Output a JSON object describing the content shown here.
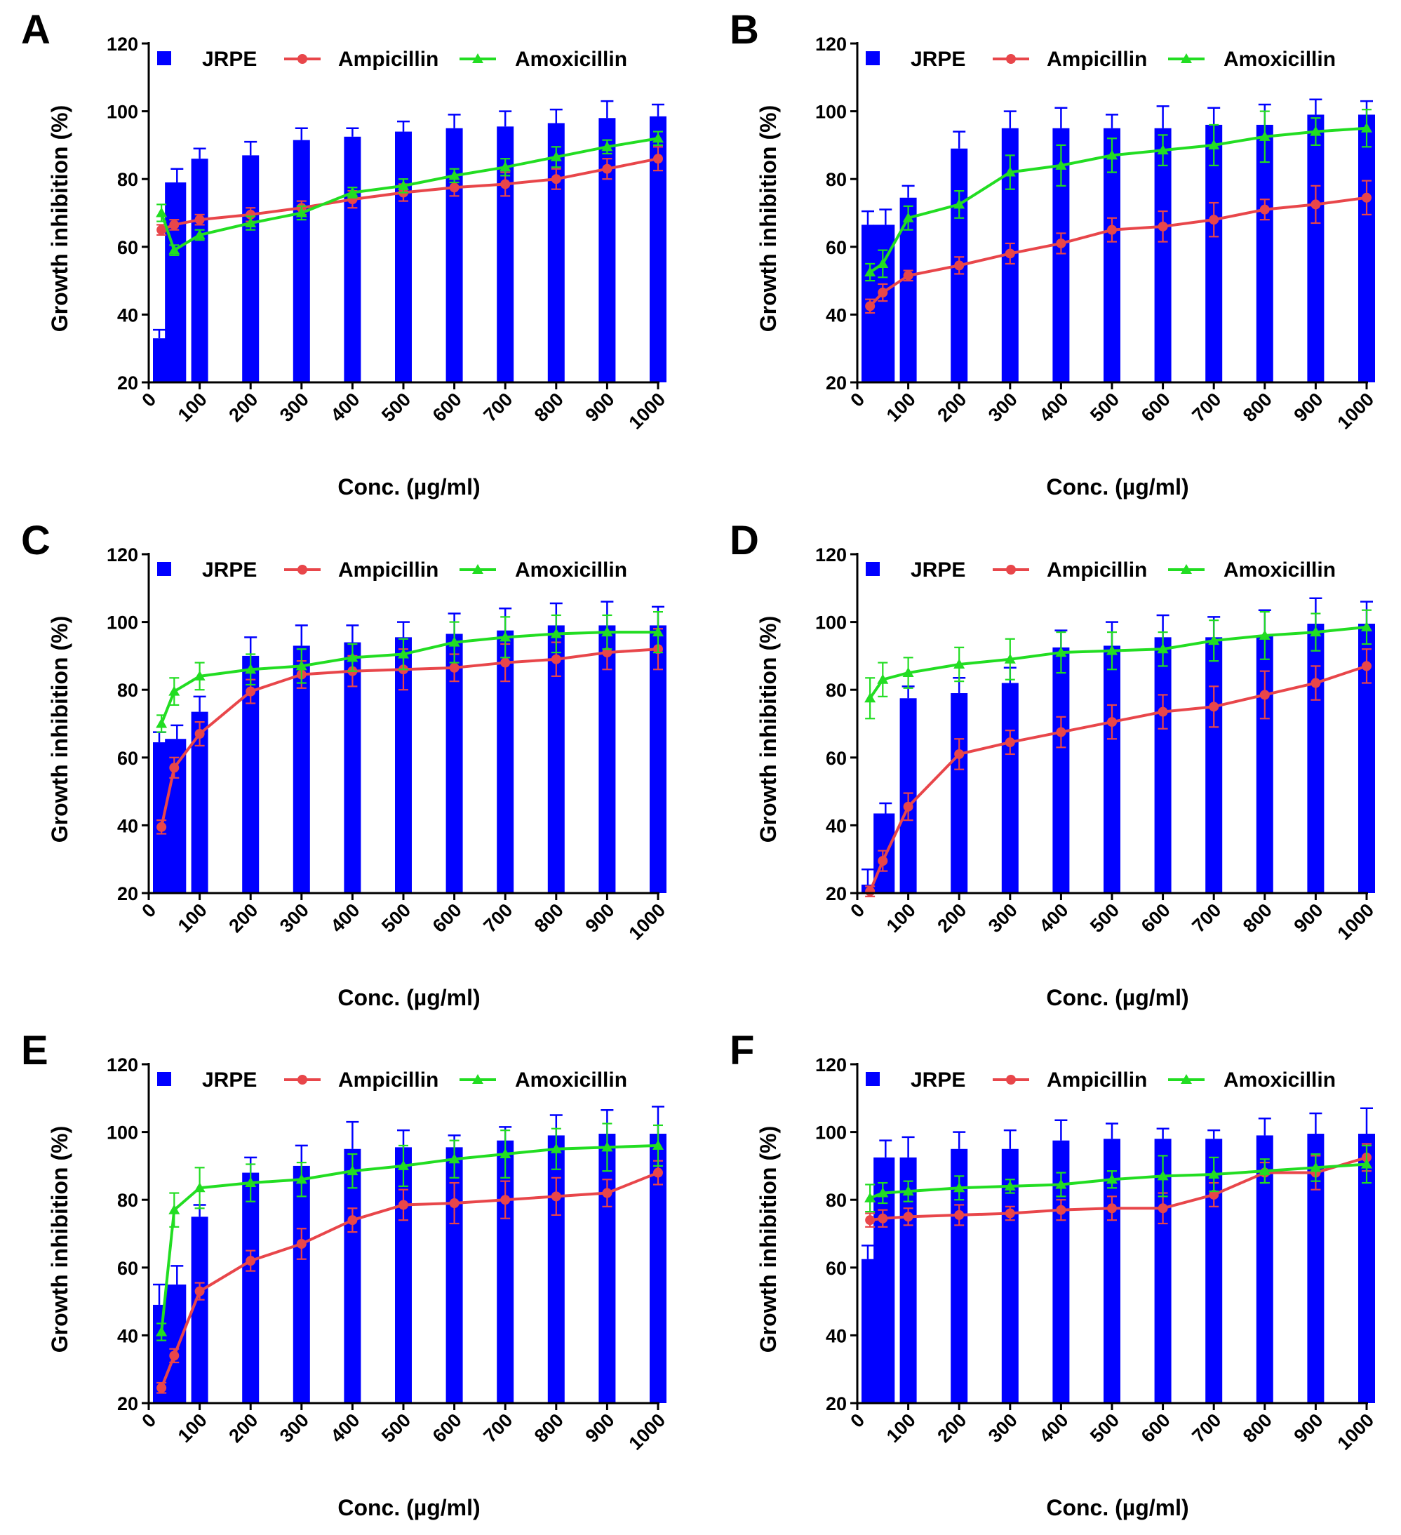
{
  "colors": {
    "jrpe": "#0000FF",
    "ampicillin": "#E8464A",
    "amoxicillin": "#22DD22",
    "axis": "#000000"
  },
  "chart_data": [
    {
      "panel": "A",
      "type": "bar+line",
      "xlabel": "Conc. (µg/ml)",
      "ylabel": "Growth inhibition (%)",
      "ylim": [
        20,
        120
      ],
      "yticks": [
        "20",
        "40",
        "60",
        "80",
        "100",
        "120"
      ],
      "xticks": [
        "0",
        "100",
        "200",
        "300",
        "400",
        "500",
        "600",
        "700",
        "800",
        "900",
        "1000"
      ],
      "x": [
        25,
        50,
        100,
        200,
        300,
        400,
        500,
        600,
        700,
        800,
        900,
        1000
      ],
      "series": [
        {
          "name": "JRPE",
          "kind": "bar",
          "values": [
            33,
            79,
            86,
            87,
            91.5,
            92.5,
            94,
            95,
            95.5,
            96.5,
            98,
            98.5
          ],
          "errors": [
            2.5,
            4,
            3,
            4,
            3.5,
            2.5,
            3,
            4,
            4.5,
            4,
            5,
            3.5
          ]
        },
        {
          "name": "Ampicillin",
          "kind": "line",
          "marker": "circle",
          "values": [
            65,
            66.5,
            68,
            69.5,
            71.5,
            74,
            76,
            77.5,
            78.5,
            80,
            83,
            86
          ],
          "errors": [
            1.5,
            1.5,
            1.5,
            2,
            2,
            2.5,
            2.5,
            2.5,
            3.5,
            3,
            3,
            3.5
          ]
        },
        {
          "name": "Amoxicillin",
          "kind": "line",
          "marker": "triangle",
          "values": [
            70,
            59,
            63.5,
            67,
            70,
            76,
            78,
            81,
            83.5,
            86.5,
            89.5,
            92
          ],
          "errors": [
            2.5,
            1.5,
            1.5,
            2,
            2,
            1.5,
            2,
            2,
            2.5,
            3,
            2,
            2
          ]
        }
      ]
    },
    {
      "panel": "B",
      "type": "bar+line",
      "xlabel": "Conc. (µg/ml)",
      "ylabel": "Growth inhibition (%)",
      "ylim": [
        20,
        120
      ],
      "yticks": [
        "20",
        "40",
        "60",
        "80",
        "100",
        "120"
      ],
      "xticks": [
        "0",
        "100",
        "200",
        "300",
        "400",
        "500",
        "600",
        "700",
        "800",
        "900",
        "1000"
      ],
      "x": [
        25,
        50,
        100,
        200,
        300,
        400,
        500,
        600,
        700,
        800,
        900,
        1000
      ],
      "series": [
        {
          "name": "JRPE",
          "kind": "bar",
          "values": [
            66.5,
            66.5,
            74.5,
            89,
            95,
            95,
            95,
            95,
            96,
            96,
            99,
            99
          ],
          "errors": [
            4,
            4.5,
            3.5,
            5,
            5,
            6,
            4,
            6.5,
            5,
            6,
            4.5,
            4
          ]
        },
        {
          "name": "Ampicillin",
          "kind": "line",
          "marker": "circle",
          "values": [
            42.5,
            46.5,
            51.5,
            54.5,
            58,
            61,
            65,
            66,
            68,
            71,
            72.5,
            74.5
          ],
          "errors": [
            2,
            2.5,
            1.5,
            2.5,
            3,
            3,
            3.5,
            4.5,
            5,
            3,
            5.5,
            5
          ]
        },
        {
          "name": "Amoxicillin",
          "kind": "line",
          "marker": "triangle",
          "values": [
            52.5,
            55,
            68.5,
            72.5,
            82,
            84,
            87,
            88.5,
            90,
            92.5,
            94,
            95
          ],
          "errors": [
            2.5,
            4,
            3.5,
            4,
            5,
            6,
            5,
            4.5,
            6,
            7.5,
            4,
            5.5
          ]
        }
      ]
    },
    {
      "panel": "C",
      "type": "bar+line",
      "xlabel": "Conc. (µg/ml)",
      "ylabel": "Growth inhibition (%)",
      "ylim": [
        20,
        120
      ],
      "yticks": [
        "20",
        "40",
        "60",
        "80",
        "100",
        "120"
      ],
      "xticks": [
        "0",
        "100",
        "200",
        "300",
        "400",
        "500",
        "600",
        "700",
        "800",
        "900",
        "1000"
      ],
      "x": [
        25,
        50,
        100,
        200,
        300,
        400,
        500,
        600,
        700,
        800,
        900,
        1000
      ],
      "series": [
        {
          "name": "JRPE",
          "kind": "bar",
          "values": [
            64.5,
            65.5,
            73.5,
            90,
            93,
            94,
            95.5,
            96.5,
            97.5,
            99,
            99,
            99
          ],
          "errors": [
            3,
            4,
            4.5,
            5.5,
            6,
            5,
            4.5,
            6,
            6.5,
            6.5,
            7,
            5.5
          ]
        },
        {
          "name": "Ampicillin",
          "kind": "line",
          "marker": "circle",
          "values": [
            39.5,
            57,
            67,
            79.5,
            84.5,
            85.5,
            86,
            86.5,
            88,
            89,
            91,
            92
          ],
          "errors": [
            2,
            3,
            3.5,
            3.5,
            4,
            4.5,
            6,
            4,
            5.5,
            5,
            5,
            6
          ]
        },
        {
          "name": "Amoxicillin",
          "kind": "line",
          "marker": "triangle",
          "values": [
            70,
            79.5,
            84,
            86,
            87,
            89.5,
            90.5,
            94,
            95.5,
            96.5,
            97,
            97
          ],
          "errors": [
            2.5,
            4,
            4,
            4.5,
            5,
            4,
            4.5,
            6,
            6,
            5.5,
            5,
            6
          ]
        }
      ]
    },
    {
      "panel": "D",
      "type": "bar+line",
      "xlabel": "Conc. (µg/ml)",
      "ylabel": "Growth inhibition (%)",
      "ylim": [
        20,
        120
      ],
      "yticks": [
        "20",
        "40",
        "60",
        "80",
        "100",
        "120"
      ],
      "xticks": [
        "0",
        "100",
        "200",
        "300",
        "400",
        "500",
        "600",
        "700",
        "800",
        "900",
        "1000"
      ],
      "x": [
        25,
        50,
        100,
        200,
        300,
        400,
        500,
        600,
        700,
        800,
        900,
        1000
      ],
      "series": [
        {
          "name": "JRPE",
          "kind": "bar",
          "values": [
            22.5,
            43.5,
            77.5,
            79,
            82,
            92.5,
            93,
            95.5,
            95.5,
            96,
            99.5,
            99.5
          ],
          "errors": [
            4.5,
            3,
            3.5,
            4.5,
            4.5,
            5,
            7,
            6.5,
            6,
            7.5,
            7.5,
            6.5
          ]
        },
        {
          "name": "Ampicillin",
          "kind": "line",
          "marker": "circle",
          "values": [
            20.5,
            29.5,
            45.5,
            61,
            64.5,
            67.5,
            70.5,
            73.5,
            75,
            78.5,
            82,
            87
          ],
          "errors": [
            1.5,
            3,
            4,
            4.5,
            3.5,
            4.5,
            5,
            5,
            6,
            7,
            5,
            5
          ]
        },
        {
          "name": "Amoxicillin",
          "kind": "line",
          "marker": "triangle",
          "values": [
            77.5,
            83,
            85,
            87.5,
            89,
            91,
            91.5,
            92,
            94.5,
            96,
            97,
            98.5
          ],
          "errors": [
            6,
            5,
            4.5,
            5,
            6,
            6,
            5.5,
            5,
            6,
            7,
            5.5,
            5
          ]
        }
      ]
    },
    {
      "panel": "E",
      "type": "bar+line",
      "xlabel": "Conc. (µg/ml)",
      "ylabel": "Growth inhibition (%)",
      "ylim": [
        20,
        120
      ],
      "yticks": [
        "20",
        "40",
        "60",
        "80",
        "100",
        "120"
      ],
      "xticks": [
        "0",
        "100",
        "200",
        "300",
        "400",
        "500",
        "600",
        "700",
        "800",
        "900",
        "1000"
      ],
      "x": [
        25,
        50,
        100,
        200,
        300,
        400,
        500,
        600,
        700,
        800,
        900,
        1000
      ],
      "series": [
        {
          "name": "JRPE",
          "kind": "bar",
          "values": [
            49,
            55,
            75,
            88,
            90,
            95,
            95.5,
            95.5,
            97.5,
            99,
            99.5,
            99.5
          ],
          "errors": [
            6,
            5.5,
            3.5,
            4.5,
            6,
            8,
            5,
            3.5,
            4,
            6,
            7,
            8
          ]
        },
        {
          "name": "Ampicillin",
          "kind": "line",
          "marker": "circle",
          "values": [
            24.5,
            34,
            53,
            62,
            67,
            74,
            78.5,
            79,
            80,
            81,
            82,
            88
          ],
          "errors": [
            1.5,
            2,
            2.5,
            3,
            4.5,
            3.5,
            4.5,
            6,
            5.5,
            5.5,
            4,
            3.5
          ]
        },
        {
          "name": "Amoxicillin",
          "kind": "line",
          "marker": "triangle",
          "values": [
            41,
            77,
            83.5,
            85,
            86,
            88.5,
            90,
            92,
            93.5,
            95,
            95.5,
            96
          ],
          "errors": [
            2.5,
            5,
            6,
            5.5,
            5,
            5,
            6,
            5.5,
            7,
            6,
            7,
            6
          ]
        }
      ]
    },
    {
      "panel": "F",
      "type": "bar+line",
      "xlabel": "Conc. (µg/ml)",
      "ylabel": "Growth inhibition (%)",
      "ylim": [
        20,
        120
      ],
      "yticks": [
        "20",
        "40",
        "60",
        "80",
        "100",
        "120"
      ],
      "xticks": [
        "0",
        "100",
        "200",
        "300",
        "400",
        "500",
        "600",
        "700",
        "800",
        "900",
        "1000"
      ],
      "x": [
        25,
        50,
        100,
        200,
        300,
        400,
        500,
        600,
        700,
        800,
        900,
        1000
      ],
      "series": [
        {
          "name": "JRPE",
          "kind": "bar",
          "values": [
            62.5,
            92.5,
            92.5,
            95,
            95,
            97.5,
            98,
            98,
            98,
            99,
            99.5,
            99.5
          ],
          "errors": [
            4,
            5,
            6,
            5,
            5.5,
            6,
            4.5,
            3,
            2.5,
            5,
            6,
            7.5
          ]
        },
        {
          "name": "Ampicillin",
          "kind": "line",
          "marker": "circle",
          "values": [
            74,
            74.5,
            75,
            75.5,
            76,
            77,
            77.5,
            77.5,
            81.5,
            88,
            88,
            92.5
          ],
          "errors": [
            2,
            2.5,
            2.5,
            3,
            2,
            3,
            3.5,
            4.5,
            3.5,
            3,
            5,
            4
          ]
        },
        {
          "name": "Amoxicillin",
          "kind": "line",
          "marker": "triangle",
          "values": [
            80.5,
            82,
            82.5,
            83.5,
            84,
            84.5,
            86,
            87,
            87.5,
            88.5,
            89.5,
            90.5
          ],
          "errors": [
            4,
            3,
            3,
            3.5,
            2,
            3.5,
            2.5,
            6,
            5,
            3.5,
            4,
            5.5
          ]
        }
      ]
    }
  ]
}
